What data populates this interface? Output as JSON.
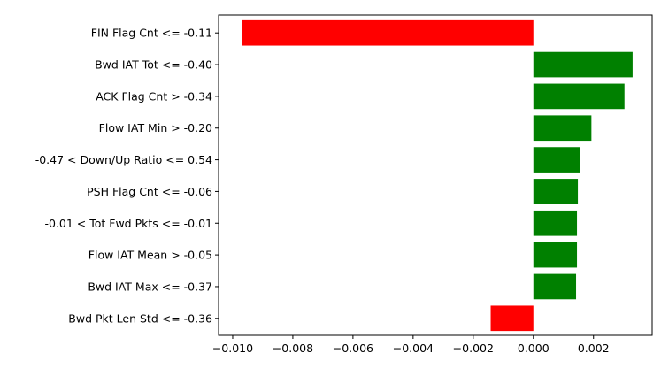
{
  "chart_data": {
    "type": "bar",
    "orientation": "horizontal",
    "title": "",
    "xlabel": "",
    "ylabel": "",
    "categories": [
      "FIN Flag Cnt <= -0.11",
      "Bwd IAT Tot <= -0.40",
      "ACK Flag Cnt > -0.34",
      "Flow IAT Min > -0.20",
      "-0.47 < Down/Up Ratio <= 0.54",
      "PSH Flag Cnt <= -0.06",
      "-0.01 < Tot Fwd Pkts <= -0.01",
      "Flow IAT Mean > -0.05",
      "Bwd IAT Max <= -0.37",
      "Bwd Pkt Len Std <= -0.36"
    ],
    "values": [
      -0.0097,
      0.0033,
      0.00303,
      0.00193,
      0.00155,
      0.00148,
      0.00145,
      0.00145,
      0.00142,
      -0.00142
    ],
    "xlim": [
      -0.01047,
      0.00395
    ],
    "xticks": [
      -0.01,
      -0.008,
      -0.006,
      -0.004,
      -0.002,
      0.0,
      0.002
    ],
    "xtick_labels": [
      "−0.010",
      "−0.008",
      "−0.006",
      "−0.004",
      "−0.002",
      "0.000",
      "0.002"
    ],
    "grid": false,
    "legend": "none",
    "colors": {
      "positive": "#008000",
      "negative": "#ff0000",
      "axis": "#000000"
    }
  }
}
